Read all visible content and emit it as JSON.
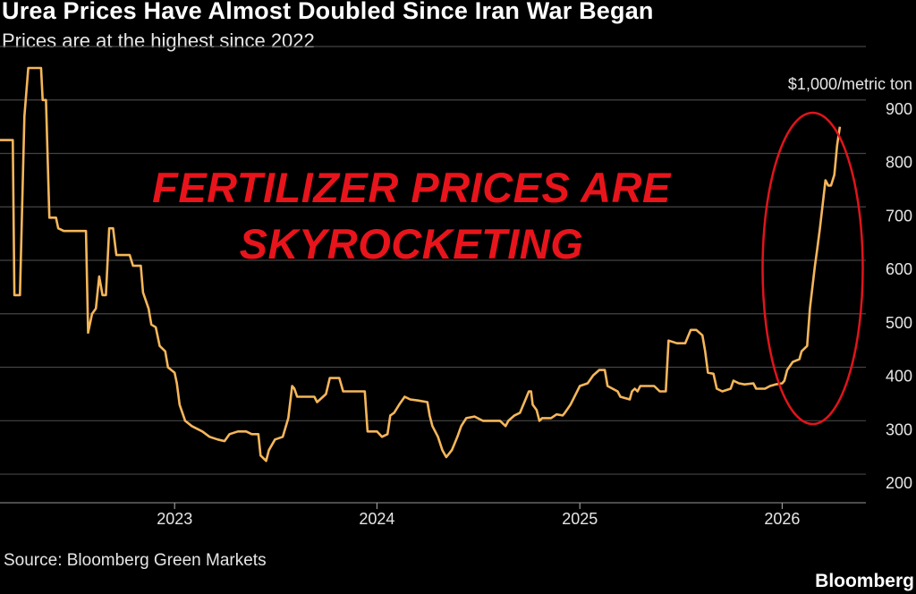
{
  "header": {
    "title": "Urea Prices Have Almost Doubled Since Iran War Began",
    "subtitle": "Prices are at the highest since 2022"
  },
  "annotation": {
    "line1": "FERTILIZER PRICES ARE",
    "line2": "SKYROCKETING",
    "color": "#e8141b"
  },
  "footer": {
    "source": "Source: Bloomberg Green Markets",
    "brand": "Bloomberg"
  },
  "chart_data": {
    "type": "line",
    "title": "Urea Prices Have Almost Doubled Since Iran War Began",
    "subtitle": "Prices are at the highest since 2022",
    "unit_label": "$1,000/metric ton",
    "ylim": [
      180,
      1000
    ],
    "xlim": [
      "2022-02-20",
      "2026-06-01"
    ],
    "y_ticks": [
      200,
      300,
      400,
      500,
      600,
      700,
      800,
      900
    ],
    "x_ticks": [
      {
        "label": "2023",
        "date": "2023-01-01"
      },
      {
        "label": "2024",
        "date": "2024-01-01"
      },
      {
        "label": "2025",
        "date": "2025-01-01"
      },
      {
        "label": "2026",
        "date": "2026-01-01"
      }
    ],
    "grid": true,
    "y_axis_position": "right",
    "line_color": "#f5b65a",
    "highlight_color": "#e0141b",
    "series": [
      {
        "values": [
          [
            "2022-02-20",
            855
          ],
          [
            "2022-03-15",
            855
          ],
          [
            "2022-03-18",
            565
          ],
          [
            "2022-03-28",
            565
          ],
          [
            "2022-04-05",
            900
          ],
          [
            "2022-04-12",
            990
          ],
          [
            "2022-05-05",
            990
          ],
          [
            "2022-05-08",
            930
          ],
          [
            "2022-05-14",
            930
          ],
          [
            "2022-05-20",
            710
          ],
          [
            "2022-06-01",
            710
          ],
          [
            "2022-06-05",
            690
          ],
          [
            "2022-06-15",
            685
          ],
          [
            "2022-07-25",
            685
          ],
          [
            "2022-07-29",
            495
          ],
          [
            "2022-08-05",
            530
          ],
          [
            "2022-08-12",
            540
          ],
          [
            "2022-08-18",
            600
          ],
          [
            "2022-08-24",
            565
          ],
          [
            "2022-08-30",
            565
          ],
          [
            "2022-09-05",
            690
          ],
          [
            "2022-09-12",
            690
          ],
          [
            "2022-09-18",
            640
          ],
          [
            "2022-10-12",
            640
          ],
          [
            "2022-10-18",
            620
          ],
          [
            "2022-11-01",
            620
          ],
          [
            "2022-11-05",
            570
          ],
          [
            "2022-11-15",
            540
          ],
          [
            "2022-11-20",
            510
          ],
          [
            "2022-11-28",
            505
          ],
          [
            "2022-12-05",
            470
          ],
          [
            "2022-12-15",
            460
          ],
          [
            "2022-12-20",
            430
          ],
          [
            "2023-01-01",
            420
          ],
          [
            "2023-01-05",
            400
          ],
          [
            "2023-01-10",
            360
          ],
          [
            "2023-01-20",
            330
          ],
          [
            "2023-02-01",
            320
          ],
          [
            "2023-02-20",
            310
          ],
          [
            "2023-03-05",
            300
          ],
          [
            "2023-03-20",
            295
          ],
          [
            "2023-04-01",
            292
          ],
          [
            "2023-04-10",
            305
          ],
          [
            "2023-04-25",
            310
          ],
          [
            "2023-05-10",
            310
          ],
          [
            "2023-05-20",
            305
          ],
          [
            "2023-06-01",
            305
          ],
          [
            "2023-06-05",
            265
          ],
          [
            "2023-06-15",
            255
          ],
          [
            "2023-06-20",
            275
          ],
          [
            "2023-07-01",
            295
          ],
          [
            "2023-07-15",
            300
          ],
          [
            "2023-07-25",
            335
          ],
          [
            "2023-08-01",
            395
          ],
          [
            "2023-08-05",
            390
          ],
          [
            "2023-08-10",
            375
          ],
          [
            "2023-08-25",
            375
          ],
          [
            "2023-09-10",
            375
          ],
          [
            "2023-09-15",
            365
          ],
          [
            "2023-10-01",
            380
          ],
          [
            "2023-10-08",
            410
          ],
          [
            "2023-10-25",
            410
          ],
          [
            "2023-11-01",
            385
          ],
          [
            "2023-11-20",
            385
          ],
          [
            "2023-12-10",
            385
          ],
          [
            "2023-12-15",
            310
          ],
          [
            "2024-01-01",
            310
          ],
          [
            "2024-01-10",
            300
          ],
          [
            "2024-01-20",
            305
          ],
          [
            "2024-01-25",
            340
          ],
          [
            "2024-02-01",
            345
          ],
          [
            "2024-02-10",
            360
          ],
          [
            "2024-02-20",
            375
          ],
          [
            "2024-03-01",
            370
          ],
          [
            "2024-03-15",
            368
          ],
          [
            "2024-04-01",
            365
          ],
          [
            "2024-04-05",
            340
          ],
          [
            "2024-04-10",
            320
          ],
          [
            "2024-04-20",
            300
          ],
          [
            "2024-04-28",
            275
          ],
          [
            "2024-05-05",
            262
          ],
          [
            "2024-05-15",
            275
          ],
          [
            "2024-05-25",
            300
          ],
          [
            "2024-06-01",
            320
          ],
          [
            "2024-06-10",
            335
          ],
          [
            "2024-06-25",
            338
          ],
          [
            "2024-07-10",
            330
          ],
          [
            "2024-07-25",
            330
          ],
          [
            "2024-08-10",
            330
          ],
          [
            "2024-08-20",
            320
          ],
          [
            "2024-08-25",
            330
          ],
          [
            "2024-09-05",
            340
          ],
          [
            "2024-09-15",
            345
          ],
          [
            "2024-09-25",
            370
          ],
          [
            "2024-10-01",
            385
          ],
          [
            "2024-10-05",
            385
          ],
          [
            "2024-10-08",
            360
          ],
          [
            "2024-10-15",
            350
          ],
          [
            "2024-10-20",
            330
          ],
          [
            "2024-10-25",
            335
          ],
          [
            "2024-11-10",
            335
          ],
          [
            "2024-11-20",
            342
          ],
          [
            "2024-12-01",
            340
          ],
          [
            "2024-12-05",
            345
          ],
          [
            "2024-12-15",
            360
          ],
          [
            "2025-01-01",
            395
          ],
          [
            "2025-01-15",
            400
          ],
          [
            "2025-01-25",
            415
          ],
          [
            "2025-02-05",
            425
          ],
          [
            "2025-02-15",
            425
          ],
          [
            "2025-02-20",
            395
          ],
          [
            "2025-03-01",
            390
          ],
          [
            "2025-03-10",
            385
          ],
          [
            "2025-03-15",
            375
          ],
          [
            "2025-04-01",
            370
          ],
          [
            "2025-04-05",
            385
          ],
          [
            "2025-04-10",
            390
          ],
          [
            "2025-04-15",
            385
          ],
          [
            "2025-04-20",
            395
          ],
          [
            "2025-05-15",
            395
          ],
          [
            "2025-05-25",
            385
          ],
          [
            "2025-06-05",
            385
          ],
          [
            "2025-06-10",
            480
          ],
          [
            "2025-06-25",
            475
          ],
          [
            "2025-07-10",
            475
          ],
          [
            "2025-07-20",
            500
          ],
          [
            "2025-07-30",
            500
          ],
          [
            "2025-08-10",
            490
          ],
          [
            "2025-08-15",
            460
          ],
          [
            "2025-08-20",
            420
          ],
          [
            "2025-08-30",
            418
          ],
          [
            "2025-09-05",
            390
          ],
          [
            "2025-09-15",
            385
          ],
          [
            "2025-09-30",
            390
          ],
          [
            "2025-10-05",
            405
          ],
          [
            "2025-10-15",
            400
          ],
          [
            "2025-10-25",
            398
          ],
          [
            "2025-11-10",
            400
          ],
          [
            "2025-11-15",
            390
          ],
          [
            "2025-12-01",
            390
          ],
          [
            "2025-12-10",
            395
          ],
          [
            "2025-12-20",
            398
          ],
          [
            "2026-01-01",
            400
          ],
          [
            "2026-01-05",
            405
          ],
          [
            "2026-01-10",
            425
          ],
          [
            "2026-01-20",
            440
          ],
          [
            "2026-02-01",
            445
          ],
          [
            "2026-02-05",
            460
          ],
          [
            "2026-02-15",
            470
          ],
          [
            "2026-02-20",
            540
          ],
          [
            "2026-03-01",
            620
          ],
          [
            "2026-03-05",
            650
          ],
          [
            "2026-03-10",
            690
          ],
          [
            "2026-03-20",
            780
          ],
          [
            "2026-03-25",
            770
          ],
          [
            "2026-03-30",
            770
          ],
          [
            "2026-04-05",
            790
          ],
          [
            "2026-04-10",
            845
          ],
          [
            "2026-04-15",
            880
          ]
        ]
      }
    ]
  }
}
